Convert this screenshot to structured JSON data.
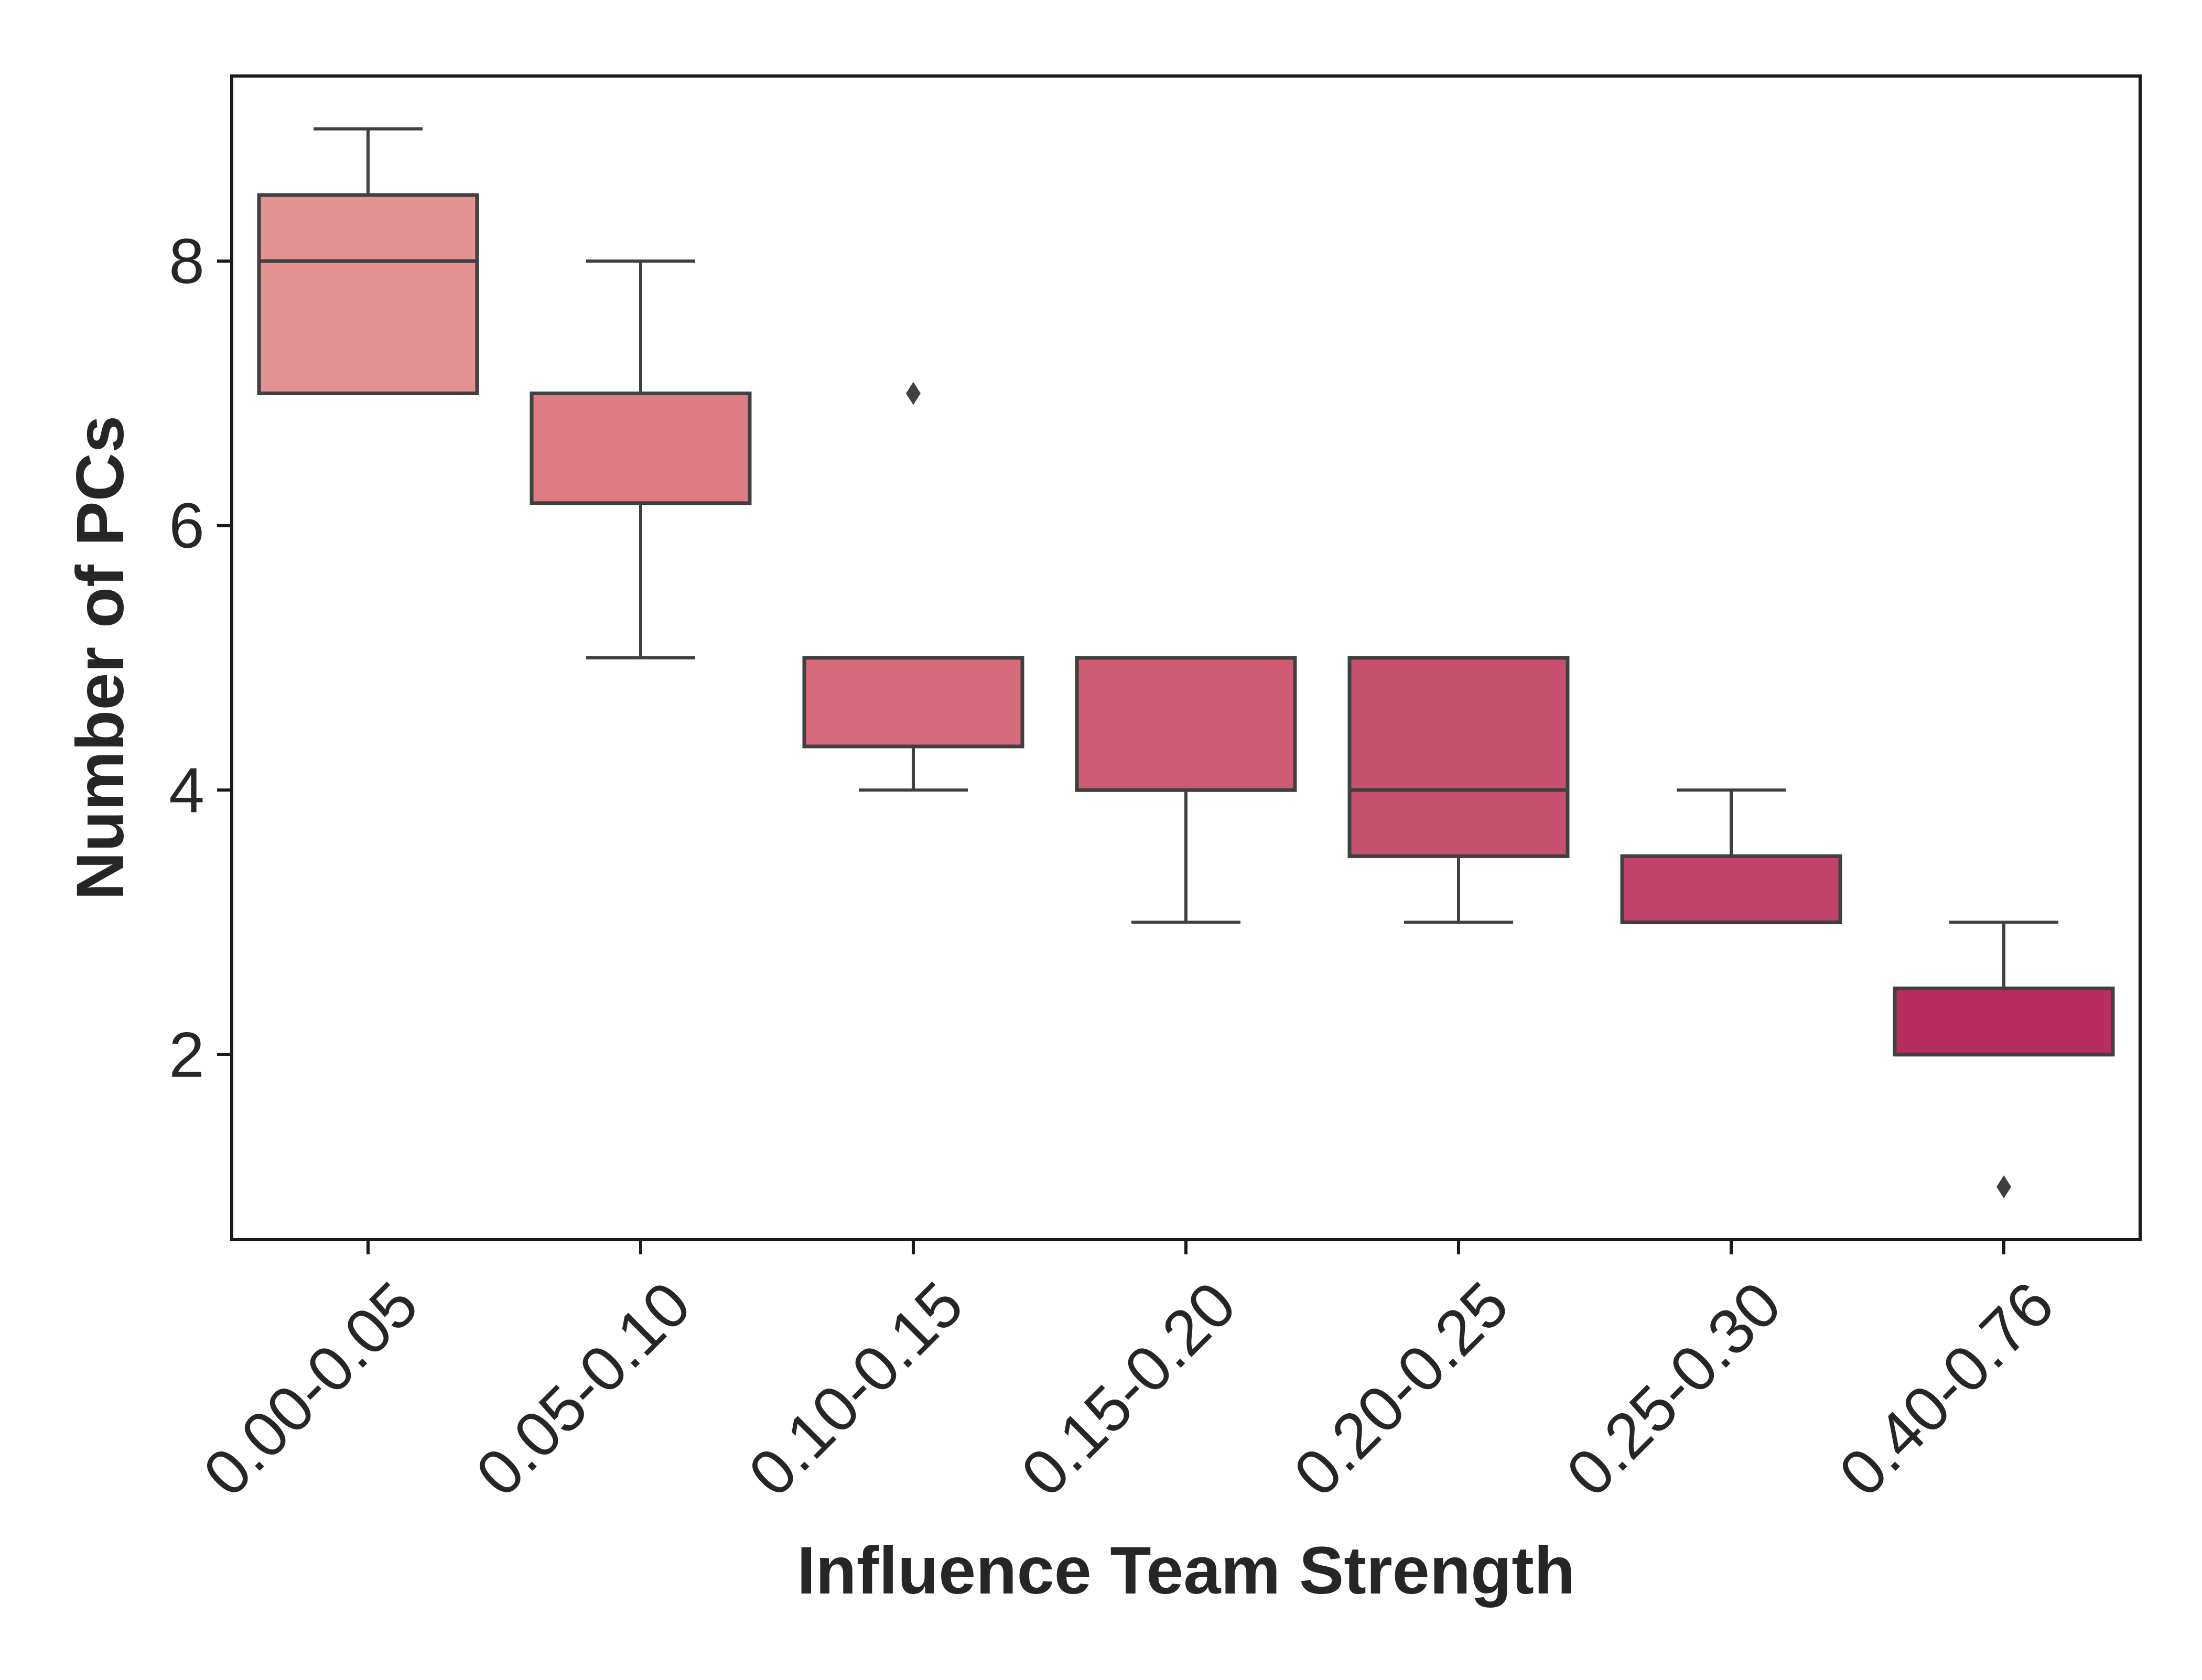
{
  "chart_data": {
    "type": "box",
    "xlabel": "Influence Team Strength",
    "ylabel": "Number of PCs",
    "ylim": [
      0.6,
      9.4
    ],
    "yticks": [
      2,
      4,
      6,
      8
    ],
    "grid": false,
    "categories": [
      "0.00-0.05",
      "0.05-0.10",
      "0.10-0.15",
      "0.15-0.20",
      "0.20-0.25",
      "0.25-0.30",
      "0.40-0.76"
    ],
    "boxes": [
      {
        "category": "0.00-0.05",
        "whisker_low": 7,
        "q1": 7,
        "median": 8,
        "q3": 8.5,
        "whisker_high": 9,
        "outliers": []
      },
      {
        "category": "0.05-0.10",
        "whisker_low": 5,
        "q1": 6.17,
        "median": 7,
        "q3": 7,
        "whisker_high": 8,
        "outliers": []
      },
      {
        "category": "0.10-0.15",
        "whisker_low": 4,
        "q1": 4.33,
        "median": 5,
        "q3": 5,
        "whisker_high": 5,
        "outliers": [
          7
        ]
      },
      {
        "category": "0.15-0.20",
        "whisker_low": 3,
        "q1": 4,
        "median": 5,
        "q3": 5,
        "whisker_high": 5,
        "outliers": []
      },
      {
        "category": "0.20-0.25",
        "whisker_low": 3,
        "q1": 3.5,
        "median": 4,
        "q3": 5,
        "whisker_high": 5,
        "outliers": []
      },
      {
        "category": "0.25-0.30",
        "whisker_low": 3,
        "q1": 3,
        "median": 3,
        "q3": 3.5,
        "whisker_high": 4,
        "outliers": []
      },
      {
        "category": "0.40-0.76",
        "whisker_low": 2,
        "q1": 2,
        "median": 2,
        "q3": 2.5,
        "whisker_high": 3,
        "outliers": [
          1
        ]
      }
    ],
    "colors": [
      "#e49192",
      "#de7c84",
      "#d6697a",
      "#cf5b73",
      "#c7516f",
      "#c1426a",
      "#b72d5f"
    ],
    "line_color": "#404040"
  }
}
